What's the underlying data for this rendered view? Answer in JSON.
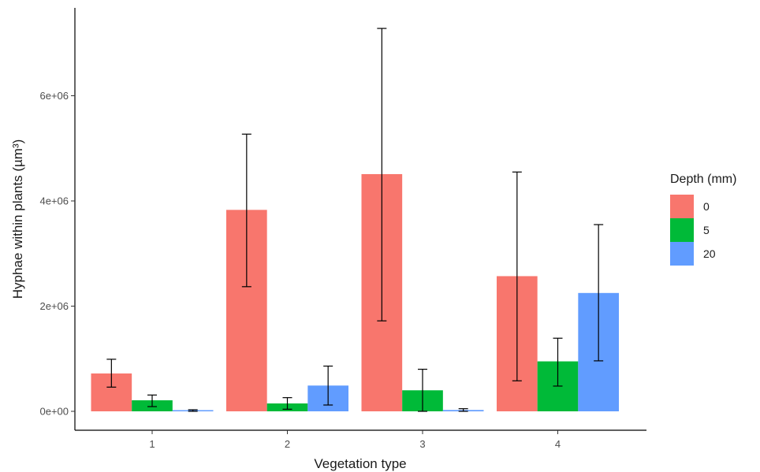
{
  "chart_data": {
    "type": "bar",
    "xlabel": "Vegetation type",
    "ylabel": "Hyphae within plants (µm³)",
    "categories": [
      "1",
      "2",
      "3",
      "4"
    ],
    "ylim": [
      -350000,
      7400000
    ],
    "yticks": [
      0,
      2000000,
      4000000,
      6000000
    ],
    "ytick_labels": [
      "0e+00",
      "2e+06",
      "4e+06",
      "6e+06"
    ],
    "legend": {
      "title": "Depth (mm)",
      "placement": "right"
    },
    "grid": false,
    "series": [
      {
        "name": "0",
        "color": "#F8766D",
        "values": [
          720000,
          3830000,
          4510000,
          2570000
        ],
        "error_low": [
          460000,
          2370000,
          1720000,
          580000
        ],
        "error_high": [
          990000,
          5270000,
          7280000,
          4550000
        ]
      },
      {
        "name": "5",
        "color": "#00BA38",
        "values": [
          210000,
          150000,
          400000,
          950000
        ],
        "error_low": [
          90000,
          40000,
          0,
          480000
        ],
        "error_high": [
          310000,
          260000,
          800000,
          1390000
        ]
      },
      {
        "name": "20",
        "color": "#619CFF",
        "values": [
          15000,
          490000,
          25000,
          2250000
        ],
        "error_low": [
          0,
          120000,
          0,
          960000
        ],
        "error_high": [
          30000,
          860000,
          50000,
          3550000
        ]
      }
    ]
  }
}
